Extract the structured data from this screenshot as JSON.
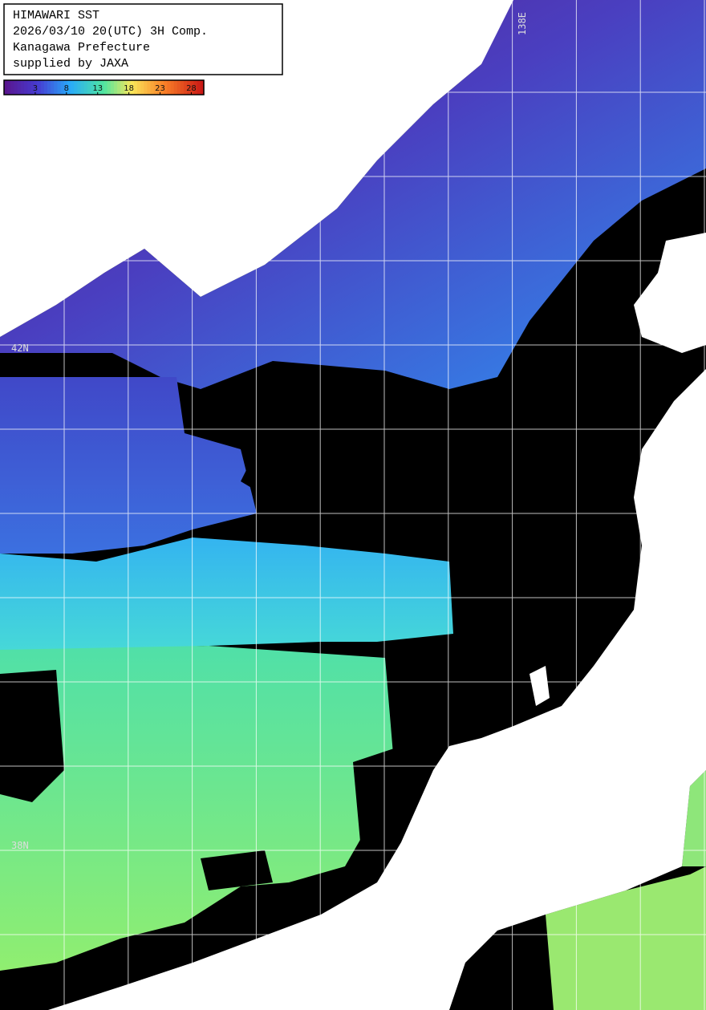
{
  "header": {
    "lines": [
      "HIMAWARI SST",
      "2026/03/10 20(UTC) 3H Comp.",
      "Kanagawa Prefecture",
      "supplied by JAXA"
    ]
  },
  "colorbar": {
    "range": [
      -2,
      30
    ],
    "ticks": [
      3,
      8,
      13,
      18,
      23,
      28
    ]
  },
  "grid_labels": {
    "lat": [
      "42N",
      "38N"
    ],
    "lon": [
      "138E"
    ]
  }
}
